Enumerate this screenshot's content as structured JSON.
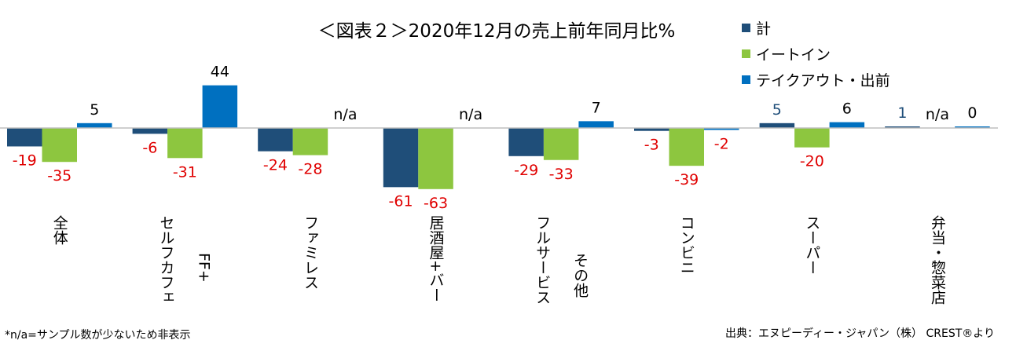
{
  "chart_data": {
    "type": "bar",
    "title": "＜図表２＞2020年12月の売上前年同月比%",
    "categories": [
      [
        "全体"
      ],
      [
        "セルフカフェ",
        "FF+"
      ],
      [
        "ファミレス"
      ],
      [
        "居酒屋+バー"
      ],
      [
        "フルサービス",
        "その他"
      ],
      [
        "コンビニ"
      ],
      [
        "スーパー"
      ],
      [
        "弁当・惣菜店"
      ]
    ],
    "series": [
      {
        "name": "計",
        "color": "#1f4e79",
        "values": [
          -19,
          -6,
          -24,
          -61,
          -29,
          -3,
          5,
          1
        ],
        "labels": [
          "-19",
          "-6",
          "-24",
          "-61",
          "-29",
          "-3",
          "5",
          "1"
        ]
      },
      {
        "name": "イートイン",
        "color": "#8dc63f",
        "values": [
          -35,
          -31,
          -28,
          -63,
          -33,
          -39,
          -20,
          null
        ],
        "labels": [
          "-35",
          "-31",
          "-28",
          "-63",
          "-33",
          "-39",
          "-20",
          "n/a"
        ]
      },
      {
        "name": "テイクアウト・出前",
        "color": "#0070c0",
        "values": [
          5,
          44,
          null,
          null,
          7,
          -2,
          6,
          0
        ],
        "labels": [
          "5",
          "44",
          "n/a",
          "n/a",
          "7",
          "-2",
          "6",
          "0"
        ]
      }
    ],
    "ylim": [
      -70,
      50
    ],
    "xlabel": "",
    "ylabel": "",
    "legend_position": "top-right",
    "grid": false,
    "negative_label_color": "#e00000"
  },
  "footnote": "*n/a=サンプル数が少ないため非表示",
  "source": "出典：エヌピーディー・ジャパン（株） CREST®より"
}
